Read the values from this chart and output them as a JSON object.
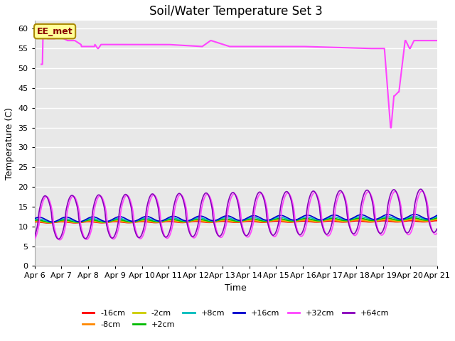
{
  "title": "Soil/Water Temperature Set 3",
  "xlabel": "Time",
  "ylabel": "Temperature (C)",
  "xlim": [
    0,
    360
  ],
  "ylim": [
    0,
    62
  ],
  "yticks": [
    0,
    5,
    10,
    15,
    20,
    25,
    30,
    35,
    40,
    45,
    50,
    55,
    60
  ],
  "xtick_labels": [
    "Apr 6",
    "Apr 7",
    "Apr 8",
    "Apr 9",
    "Apr 10",
    "Apr 11",
    "Apr 12",
    "Apr 13",
    "Apr 14",
    "Apr 15",
    "Apr 16",
    "Apr 17",
    "Apr 18",
    "Apr 19",
    "Apr 20",
    "Apr 21"
  ],
  "xtick_positions": [
    0,
    24,
    48,
    72,
    96,
    120,
    144,
    168,
    192,
    216,
    240,
    264,
    288,
    312,
    336,
    360
  ],
  "bg_color": "#e8e8e8",
  "grid_color": "#ffffff",
  "annotation_label": "EE_met",
  "annotation_bg": "#ffff99",
  "annotation_border": "#aa8800",
  "annotation_text_color": "#880000",
  "legend_entries": [
    "-16cm",
    "-8cm",
    "-2cm",
    "+2cm",
    "+8cm",
    "+16cm",
    "+32cm",
    "+64cm"
  ],
  "line_colors": [
    "#ff0000",
    "#ff8800",
    "#cccc00",
    "#00bb00",
    "#00bbbb",
    "#0000cc",
    "#ff44ff",
    "#8800bb"
  ],
  "line_widths": [
    1.2,
    1.2,
    1.2,
    1.2,
    1.2,
    1.2,
    1.2,
    1.2
  ]
}
